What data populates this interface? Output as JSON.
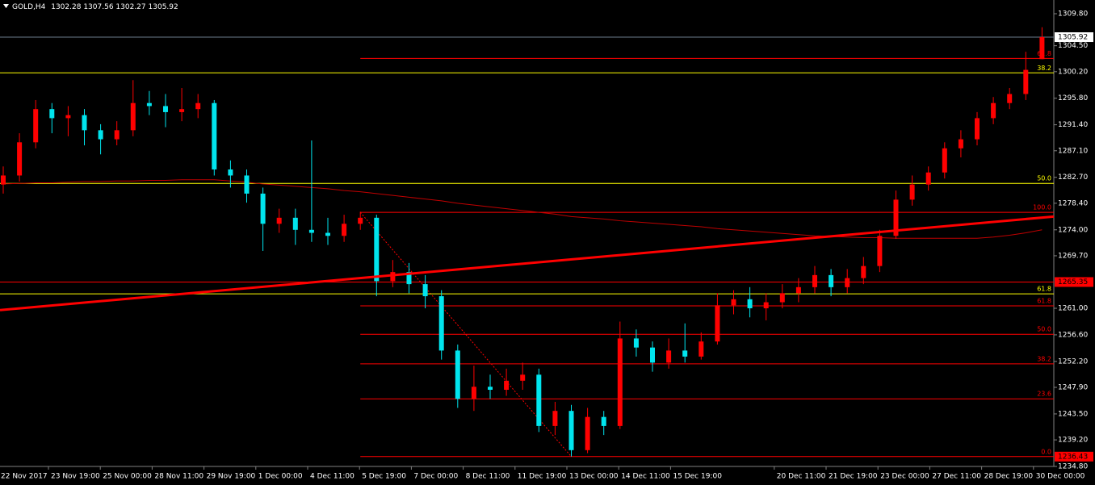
{
  "chart_data": {
    "type": "candlestick",
    "symbol": "GOLD,H4",
    "up_color": "#ff0000",
    "down_color": "#00e5ee",
    "open": [
      1281.5,
      1283.0,
      1288.5,
      1294.0,
      1292.5,
      1293.0,
      1290.5,
      1289.0,
      1290.5,
      1295.0,
      1294.5,
      1293.5,
      1294.0,
      1295.0,
      1284.0,
      1283.0,
      1280.0,
      1275.0,
      1276.0,
      1274.0,
      1273.5,
      1273.0,
      1275.0,
      1276.0,
      1265.5,
      1267.0,
      1265.0,
      1263.0,
      1254.0,
      1246.0,
      1248.0,
      1247.5,
      1249.0,
      1250.0,
      1241.5,
      1244.0,
      1237.5,
      1243.0,
      1241.5,
      1256.0,
      1254.5,
      1252.0,
      1254.0,
      1253.0,
      1255.5,
      1261.5,
      1262.5,
      1261.0,
      1262.0,
      1263.5,
      1264.5,
      1266.5,
      1264.5,
      1266.0,
      1268.0,
      1273.0,
      1279.0,
      1281.5,
      1283.5,
      1287.5,
      1289.0,
      1292.5,
      1295.0,
      1296.5,
      1302.28
    ],
    "high": [
      1284.5,
      1290.0,
      1295.5,
      1295.0,
      1294.5,
      1294.0,
      1291.5,
      1292.0,
      1298.8,
      1297.0,
      1296.5,
      1297.5,
      1296.5,
      1295.5,
      1285.5,
      1284.0,
      1281.0,
      1277.5,
      1277.5,
      1288.8,
      1276.0,
      1276.5,
      1277.0,
      1276.5,
      1269.0,
      1268.5,
      1266.5,
      1264.0,
      1255.0,
      1251.5,
      1250.0,
      1251.0,
      1252.0,
      1251.0,
      1245.5,
      1245.0,
      1244.5,
      1244.0,
      1258.8,
      1257.5,
      1255.5,
      1256.0,
      1258.5,
      1257.0,
      1263.5,
      1264.0,
      1264.5,
      1263.5,
      1265.0,
      1266.0,
      1268.0,
      1267.5,
      1267.5,
      1269.5,
      1274.0,
      1280.5,
      1283.0,
      1284.5,
      1288.5,
      1290.5,
      1293.5,
      1296.0,
      1297.5,
      1303.5,
      1307.56
    ],
    "low": [
      1280.0,
      1282.0,
      1287.5,
      1290.0,
      1289.5,
      1288.0,
      1286.5,
      1288.0,
      1289.5,
      1293.0,
      1291.0,
      1292.0,
      1292.5,
      1283.0,
      1281.0,
      1278.5,
      1270.5,
      1273.5,
      1271.5,
      1272.0,
      1271.5,
      1272.0,
      1274.0,
      1263.0,
      1264.5,
      1263.5,
      1261.0,
      1252.5,
      1244.5,
      1244.0,
      1246.0,
      1246.5,
      1247.5,
      1240.5,
      1240.0,
      1236.43,
      1237.0,
      1240.0,
      1241.0,
      1253.0,
      1250.5,
      1251.0,
      1252.0,
      1252.5,
      1255.0,
      1260.0,
      1259.5,
      1259.0,
      1261.0,
      1262.0,
      1263.5,
      1263.0,
      1263.5,
      1265.0,
      1267.0,
      1272.5,
      1278.0,
      1280.5,
      1282.5,
      1286.0,
      1288.0,
      1291.5,
      1294.0,
      1295.5,
      1302.27
    ],
    "close": [
      1283.0,
      1288.5,
      1294.0,
      1292.5,
      1293.0,
      1290.5,
      1289.0,
      1290.5,
      1295.0,
      1294.5,
      1293.5,
      1294.0,
      1295.0,
      1284.0,
      1283.0,
      1280.0,
      1275.0,
      1276.0,
      1274.0,
      1273.5,
      1273.0,
      1275.0,
      1276.0,
      1265.5,
      1267.0,
      1265.0,
      1263.0,
      1254.0,
      1246.0,
      1248.0,
      1247.5,
      1249.0,
      1250.0,
      1241.5,
      1244.0,
      1237.5,
      1243.0,
      1241.5,
      1256.0,
      1254.5,
      1252.0,
      1254.0,
      1253.0,
      1255.5,
      1261.5,
      1262.5,
      1261.0,
      1262.0,
      1263.5,
      1264.5,
      1266.5,
      1264.5,
      1266.0,
      1268.0,
      1273.0,
      1279.0,
      1281.5,
      1283.5,
      1287.5,
      1289.0,
      1292.5,
      1295.0,
      1296.5,
      1300.5,
      1305.92
    ],
    "ma": {
      "color": "#c00000",
      "values": [
        1281.6,
        1281.7,
        1281.8,
        1281.8,
        1281.9,
        1282.0,
        1282.0,
        1282.1,
        1282.1,
        1282.2,
        1282.2,
        1282.3,
        1282.3,
        1282.3,
        1282.1,
        1281.9,
        1281.6,
        1281.4,
        1281.2,
        1281.0,
        1280.8,
        1280.5,
        1280.3,
        1280.0,
        1279.7,
        1279.4,
        1279.1,
        1278.8,
        1278.4,
        1278.1,
        1277.8,
        1277.5,
        1277.2,
        1276.9,
        1276.6,
        1276.2,
        1276.0,
        1275.8,
        1275.5,
        1275.3,
        1275.1,
        1274.9,
        1274.7,
        1274.5,
        1274.2,
        1274.0,
        1273.8,
        1273.6,
        1273.4,
        1273.2,
        1273.0,
        1272.9,
        1272.8,
        1272.7,
        1272.7,
        1272.6,
        1272.6,
        1272.6,
        1272.6,
        1272.6,
        1272.6,
        1272.8,
        1273.1,
        1273.5,
        1274.0
      ]
    },
    "trendline": {
      "color": "#ff0000",
      "values": [
        1260.7,
        1276.2
      ]
    },
    "hlines": [
      {
        "value": 1265.35,
        "color": "#ff0000"
      }
    ],
    "bid_line_color": "#6b7b8c",
    "fibo": [
      {
        "color": "#ff0000",
        "levels": [
          {
            "label": "61.8",
            "value": 1302.4
          },
          {
            "label": "100.0",
            "value": 1276.9
          },
          {
            "label": "61.8",
            "value": 1261.4
          },
          {
            "label": "50.0",
            "value": 1256.7
          },
          {
            "label": "38.2",
            "value": 1251.8
          },
          {
            "label": "23.6",
            "value": 1246.0
          },
          {
            "label": "0.0",
            "value": 1236.43
          }
        ]
      },
      {
        "color": "#ffff00",
        "levels": [
          {
            "label": "38.2",
            "value": 1300.0
          },
          {
            "label": "50.0",
            "value": 1281.7
          },
          {
            "label": "61.8",
            "value": 1263.4
          }
        ]
      }
    ],
    "x_labels": [
      "22 Nov 2017",
      "23 Nov 19:00",
      "25 Nov 00:00",
      "28 Nov 11:00",
      "29 Nov 19:00",
      "1 Dec 00:00",
      "4 Dec 11:00",
      "5 Dec 19:00",
      "7 Dec 00:00",
      "8 Dec 11:00",
      "11 Dec 19:00",
      "13 Dec 00:00",
      "14 Dec 11:00",
      "15 Dec 19:00",
      null,
      "20 Dec 11:00",
      "21 Dec 19:00",
      "23 Dec 00:00",
      "27 Dec 11:00",
      "28 Dec 19:00",
      "30 Dec 00:00"
    ],
    "ylim": [
      1234.8,
      1309.8
    ],
    "yticks": [
      {
        "value": 1309.8,
        "label": "1309.80"
      },
      {
        "value": 1304.5,
        "label": "1304.50"
      },
      {
        "value": 1300.2,
        "label": "1300.20"
      },
      {
        "value": 1295.8,
        "label": "1295.80"
      },
      {
        "value": 1291.4,
        "label": "1291.40"
      },
      {
        "value": 1287.1,
        "label": "1287.10"
      },
      {
        "value": 1282.7,
        "label": "1282.70"
      },
      {
        "value": 1278.4,
        "label": "1278.40"
      },
      {
        "value": 1274.0,
        "label": "1274.00"
      },
      {
        "value": 1269.7,
        "label": "1269.70"
      },
      {
        "value": 1261.0,
        "label": "1261.00"
      },
      {
        "value": 1256.6,
        "label": "1256.60"
      },
      {
        "value": 1252.2,
        "label": "1252.20"
      },
      {
        "value": 1247.9,
        "label": "1247.90"
      },
      {
        "value": 1243.5,
        "label": "1243.50"
      },
      {
        "value": 1239.2,
        "label": "1239.20"
      },
      {
        "value": 1234.8,
        "label": "1234.80"
      }
    ]
  }
}
